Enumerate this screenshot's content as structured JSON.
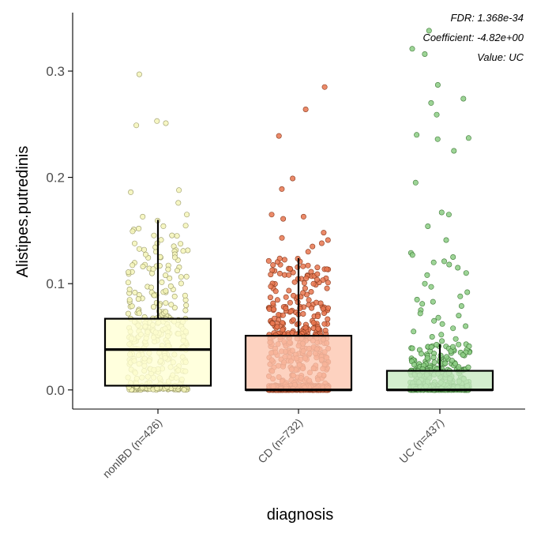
{
  "chart_data": {
    "type": "box",
    "xlabel": "diagnosis",
    "ylabel": "Alistipes.putredinis",
    "ylim": [
      -0.018,
      0.355
    ],
    "yticks": [
      "0.0",
      "0.1",
      "0.2",
      "0.3"
    ],
    "ytick_values": [
      0.0,
      0.1,
      0.2,
      0.3
    ],
    "categories": [
      "nonIBD (n=426)",
      "CD (n=732)",
      "UC (n=437)"
    ],
    "grid": false,
    "annotations": [
      "FDR: 1.368e-34",
      "Coefficient: -4.82e+00",
      "Value: UC"
    ],
    "series": [
      {
        "category": "nonIBD (n=426)",
        "n": 426,
        "fill": "#ffffd4",
        "point_fill": "#f4f4b8",
        "point_stroke": "#9a9a6a",
        "box": {
          "whisker_low": 0.0,
          "q1": 0.004,
          "median": 0.038,
          "q3": 0.067,
          "whisker_high": 0.16
        },
        "outliers": [
          0.297,
          0.253,
          0.251,
          0.249,
          0.188,
          0.186,
          0.176,
          0.165,
          0.163
        ]
      },
      {
        "category": "CD (n=732)",
        "n": 732,
        "fill": "#fcc5ae",
        "point_fill": "#e8764f",
        "point_stroke": "#8a3a1e",
        "box": {
          "whisker_low": 0.0,
          "q1": 0.0,
          "median": 0.0,
          "q3": 0.051,
          "whisker_high": 0.124
        },
        "outliers": [
          0.285,
          0.264,
          0.239,
          0.199,
          0.189,
          0.165,
          0.163,
          0.161,
          0.148,
          0.143,
          0.141,
          0.138,
          0.135,
          0.13
        ]
      },
      {
        "category": "UC (n=437)",
        "n": 437,
        "fill": "#c7e9c0",
        "point_fill": "#8ccc84",
        "point_stroke": "#3f7a38",
        "box": {
          "whisker_low": 0.0,
          "q1": 0.0,
          "median": 0.0,
          "q3": 0.018,
          "whisker_high": 0.043
        },
        "outliers": [
          0.338,
          0.321,
          0.316,
          0.287,
          0.274,
          0.27,
          0.259,
          0.24,
          0.237,
          0.236,
          0.225,
          0.195,
          0.167,
          0.165,
          0.154,
          0.141,
          0.129,
          0.127,
          0.125,
          0.121,
          0.12,
          0.118,
          0.115,
          0.11,
          0.108,
          0.1,
          0.097,
          0.092,
          0.088,
          0.085,
          0.083,
          0.081,
          0.079,
          0.075,
          0.072,
          0.07,
          0.068,
          0.065,
          0.062,
          0.06,
          0.058,
          0.055,
          0.052,
          0.05,
          0.048,
          0.046
        ]
      }
    ]
  }
}
